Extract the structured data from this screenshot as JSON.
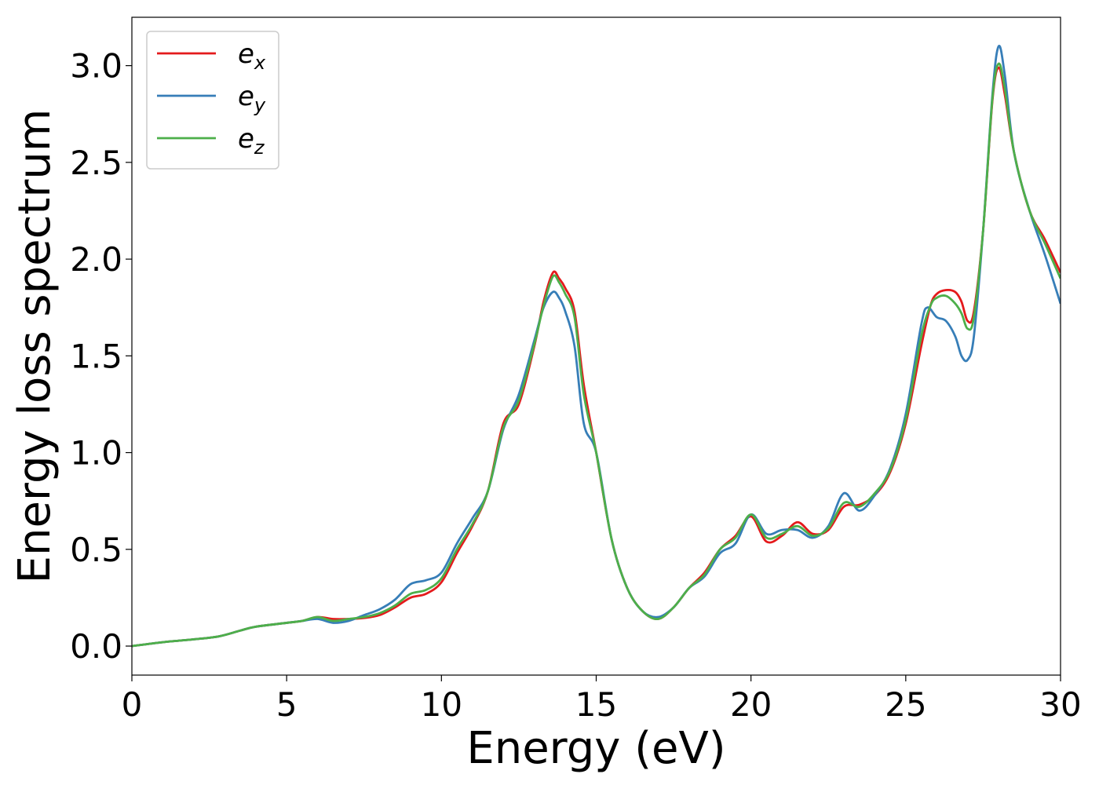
{
  "chart_data": {
    "type": "line",
    "xlabel": "Energy (eV)",
    "ylabel": "Energy loss spectrum",
    "xlim": [
      0,
      30
    ],
    "ylim": [
      -0.15,
      3.25
    ],
    "xticks": [
      0,
      5,
      10,
      15,
      20,
      25,
      30
    ],
    "xtick_labels": [
      "0",
      "5",
      "10",
      "15",
      "20",
      "25",
      "30"
    ],
    "yticks": [
      0.0,
      0.5,
      1.0,
      1.5,
      2.0,
      2.5,
      3.0
    ],
    "ytick_labels": [
      "0.0",
      "0.5",
      "1.0",
      "1.5",
      "2.0",
      "2.5",
      "3.0"
    ],
    "grid": false,
    "legend_position": "top-left",
    "series": [
      {
        "label_base": "e",
        "label_sub": "x",
        "color": "#e41a1c",
        "x": [
          0,
          1,
          2,
          2.8,
          3.5,
          4,
          5,
          5.5,
          6,
          6.5,
          7,
          7.5,
          8,
          8.5,
          9,
          9.5,
          10,
          10.5,
          11,
          11.5,
          12,
          12.5,
          13,
          13.3,
          13.6,
          13.8,
          14,
          14.3,
          14.6,
          15,
          15.5,
          16,
          16.5,
          17,
          17.5,
          18,
          18.5,
          19,
          19.5,
          20,
          20.5,
          21,
          21.5,
          22,
          22.5,
          23,
          23.5,
          24,
          24.5,
          25,
          25.5,
          25.8,
          26,
          26.3,
          26.6,
          26.8,
          27,
          27.2,
          27.5,
          27.8,
          28,
          28.2,
          28.5,
          29,
          29.5,
          30
        ],
        "y": [
          0,
          0.02,
          0.035,
          0.05,
          0.08,
          0.1,
          0.12,
          0.13,
          0.15,
          0.14,
          0.14,
          0.145,
          0.16,
          0.2,
          0.25,
          0.27,
          0.33,
          0.48,
          0.62,
          0.8,
          1.15,
          1.25,
          1.55,
          1.78,
          1.93,
          1.9,
          1.85,
          1.73,
          1.35,
          1.0,
          0.55,
          0.3,
          0.18,
          0.14,
          0.2,
          0.3,
          0.38,
          0.5,
          0.57,
          0.67,
          0.54,
          0.57,
          0.64,
          0.58,
          0.6,
          0.72,
          0.73,
          0.78,
          0.9,
          1.15,
          1.55,
          1.76,
          1.82,
          1.84,
          1.83,
          1.78,
          1.68,
          1.73,
          2.15,
          2.82,
          2.99,
          2.85,
          2.55,
          2.25,
          2.1,
          1.93
        ]
      },
      {
        "label_base": "e",
        "label_sub": "y",
        "color": "#377eb8",
        "x": [
          0,
          1,
          2,
          2.8,
          3.5,
          4,
          5,
          5.5,
          6,
          6.5,
          7,
          7.5,
          8,
          8.5,
          9,
          9.5,
          10,
          10.5,
          11,
          11.5,
          12,
          12.5,
          13,
          13.3,
          13.6,
          13.8,
          14,
          14.3,
          14.6,
          15,
          15.5,
          16,
          16.5,
          17,
          17.5,
          18,
          18.5,
          19,
          19.5,
          20,
          20.5,
          21,
          21.5,
          22,
          22.5,
          23,
          23.5,
          24,
          24.5,
          25,
          25.5,
          25.7,
          26,
          26.3,
          26.6,
          26.8,
          27,
          27.2,
          27.5,
          27.8,
          28,
          28.2,
          28.5,
          29,
          29.5,
          30
        ],
        "y": [
          0,
          0.02,
          0.035,
          0.05,
          0.08,
          0.1,
          0.12,
          0.13,
          0.14,
          0.12,
          0.13,
          0.16,
          0.19,
          0.24,
          0.32,
          0.34,
          0.38,
          0.53,
          0.66,
          0.8,
          1.12,
          1.3,
          1.58,
          1.75,
          1.83,
          1.8,
          1.73,
          1.55,
          1.15,
          1.0,
          0.55,
          0.3,
          0.18,
          0.15,
          0.2,
          0.3,
          0.36,
          0.48,
          0.53,
          0.68,
          0.58,
          0.6,
          0.6,
          0.56,
          0.62,
          0.79,
          0.7,
          0.78,
          0.92,
          1.2,
          1.66,
          1.75,
          1.7,
          1.68,
          1.6,
          1.5,
          1.48,
          1.6,
          2.15,
          2.85,
          3.1,
          2.95,
          2.55,
          2.25,
          2.02,
          1.77
        ]
      },
      {
        "label_base": "e",
        "label_sub": "z",
        "color": "#4daf4a",
        "x": [
          0,
          1,
          2,
          2.8,
          3.5,
          4,
          5,
          5.5,
          6,
          6.5,
          7,
          7.5,
          8,
          8.5,
          9,
          9.5,
          10,
          10.5,
          11,
          11.5,
          12,
          12.5,
          13,
          13.3,
          13.6,
          13.8,
          14,
          14.3,
          14.6,
          15,
          15.5,
          16,
          16.5,
          17,
          17.5,
          18,
          18.5,
          19,
          19.5,
          20,
          20.5,
          21,
          21.5,
          22,
          22.5,
          23,
          23.5,
          24,
          24.5,
          25,
          25.5,
          25.8,
          26,
          26.3,
          26.6,
          26.8,
          27,
          27.2,
          27.5,
          27.8,
          28,
          28.2,
          28.5,
          29,
          29.5,
          30
        ],
        "y": [
          0,
          0.02,
          0.035,
          0.05,
          0.08,
          0.1,
          0.12,
          0.13,
          0.15,
          0.13,
          0.14,
          0.15,
          0.17,
          0.21,
          0.27,
          0.29,
          0.35,
          0.5,
          0.63,
          0.8,
          1.13,
          1.27,
          1.56,
          1.76,
          1.91,
          1.88,
          1.82,
          1.7,
          1.3,
          1.0,
          0.55,
          0.3,
          0.18,
          0.14,
          0.2,
          0.3,
          0.37,
          0.5,
          0.56,
          0.68,
          0.56,
          0.58,
          0.62,
          0.57,
          0.61,
          0.74,
          0.72,
          0.79,
          0.91,
          1.17,
          1.6,
          1.76,
          1.8,
          1.81,
          1.77,
          1.72,
          1.64,
          1.7,
          2.15,
          2.83,
          3.01,
          2.88,
          2.55,
          2.25,
          2.08,
          1.9
        ]
      }
    ]
  }
}
